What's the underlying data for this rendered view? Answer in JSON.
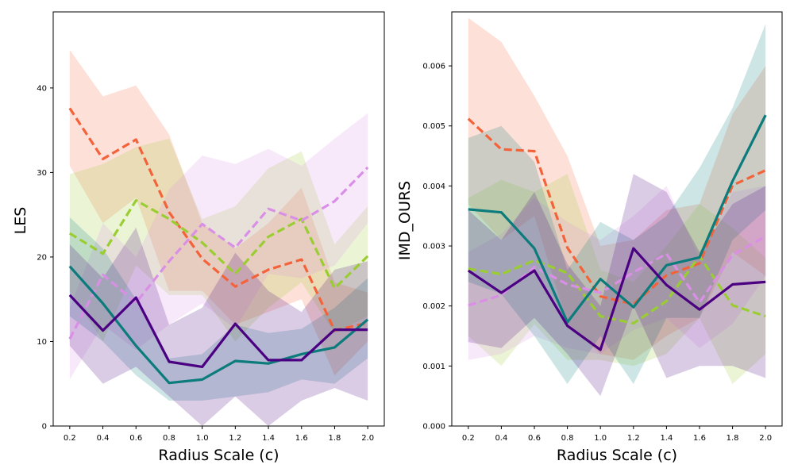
{
  "chart_data": [
    {
      "type": "line",
      "xlabel": "Radius Scale (c)",
      "ylabel": "LES",
      "x": [
        0.2,
        0.4,
        0.6,
        0.8,
        1.0,
        1.2,
        1.4,
        1.6,
        1.8,
        2.0
      ],
      "x_ticks": [
        "0.2",
        "0.4",
        "0.6",
        "0.8",
        "1.0",
        "1.2",
        "1.4",
        "1.6",
        "1.8",
        "2.0"
      ],
      "y_ticks": [
        "0",
        "10",
        "20",
        "30",
        "40"
      ],
      "ylim": [
        0,
        49
      ],
      "grid": false,
      "series": [
        {
          "color": "#F4623A",
          "dashed": true,
          "values": [
            37.6,
            31.6,
            33.9,
            25.3,
            19.8,
            16.5,
            18.5,
            19.7,
            11.3,
            12.2
          ],
          "lower": [
            30.8,
            24.0,
            27.0,
            16.0,
            16.0,
            12.0,
            13.5,
            15.0,
            6.0,
            10.0
          ],
          "upper": [
            44.5,
            39.0,
            40.3,
            34.5,
            24.0,
            21.0,
            24.0,
            28.2,
            17.0,
            15.8
          ]
        },
        {
          "color": "#9ACD32",
          "dashed": true,
          "values": [
            22.8,
            20.4,
            26.7,
            24.5,
            21.7,
            18.0,
            22.4,
            24.5,
            16.3,
            20.1
          ],
          "lower": [
            16.0,
            10.0,
            19.0,
            15.5,
            15.5,
            10.0,
            14.0,
            17.0,
            11.0,
            13.0
          ],
          "upper": [
            29.8,
            31.0,
            33.0,
            34.0,
            24.5,
            26.0,
            30.5,
            32.5,
            21.5,
            26.0
          ]
        },
        {
          "color": "#DA8FE6",
          "dashed": true,
          "values": [
            10.3,
            17.9,
            14.6,
            19.5,
            23.9,
            21.1,
            25.7,
            24.3,
            26.6,
            30.6
          ],
          "lower": [
            5.5,
            12.0,
            9.0,
            12.0,
            14.5,
            11.5,
            18.0,
            17.5,
            19.0,
            24.0
          ],
          "upper": [
            14.0,
            24.0,
            20.0,
            28.0,
            32.0,
            31.0,
            32.8,
            30.8,
            34.0,
            37.0
          ]
        },
        {
          "color": "#0B7B7B",
          "dashed": false,
          "values": [
            18.9,
            14.5,
            9.5,
            5.1,
            5.5,
            7.7,
            7.4,
            8.5,
            9.3,
            12.6
          ],
          "lower": [
            13.0,
            10.0,
            6.0,
            3.0,
            3.0,
            3.5,
            4.0,
            5.5,
            5.0,
            8.0
          ],
          "upper": [
            24.7,
            21.0,
            15.0,
            8.0,
            8.5,
            12.0,
            11.0,
            11.5,
            14.0,
            17.5
          ]
        },
        {
          "color": "#4B0082",
          "dashed": false,
          "values": [
            15.5,
            11.3,
            15.2,
            7.6,
            7.0,
            12.1,
            7.8,
            7.8,
            11.4,
            11.4
          ],
          "lower": [
            9.5,
            5.0,
            7.0,
            3.5,
            0.0,
            3.5,
            0.0,
            3.0,
            4.5,
            3.0
          ],
          "upper": [
            21.5,
            17.5,
            23.5,
            12.0,
            14.0,
            20.5,
            16.0,
            13.5,
            18.5,
            19.5
          ]
        }
      ]
    },
    {
      "type": "line",
      "xlabel": "Radius Scale (c)",
      "ylabel": "IMD_OURS",
      "x": [
        0.2,
        0.4,
        0.6,
        0.8,
        1.0,
        1.2,
        1.4,
        1.6,
        1.8,
        2.0
      ],
      "x_ticks": [
        "0.2",
        "0.4",
        "0.6",
        "0.8",
        "1.0",
        "1.2",
        "1.4",
        "1.6",
        "1.8",
        "2.0"
      ],
      "y_ticks": [
        "0.000",
        "0.001",
        "0.002",
        "0.003",
        "0.004",
        "0.005",
        "0.006"
      ],
      "ylim": [
        0,
        0.0069
      ],
      "grid": false,
      "series": [
        {
          "color": "#F4623A",
          "dashed": true,
          "values": [
            0.00512,
            0.00461,
            0.00458,
            0.00297,
            0.00216,
            0.00203,
            0.00251,
            0.00271,
            0.00401,
            0.00426
          ],
          "lower": [
            0.0037,
            0.0031,
            0.0035,
            0.0017,
            0.0012,
            0.0011,
            0.0015,
            0.0018,
            0.0029,
            0.0025
          ],
          "upper": [
            0.0068,
            0.0064,
            0.0055,
            0.0045,
            0.003,
            0.0031,
            0.0036,
            0.0037,
            0.0052,
            0.006
          ]
        },
        {
          "color": "#9ACD32",
          "dashed": true,
          "values": [
            0.00262,
            0.00253,
            0.00276,
            0.00255,
            0.00183,
            0.00171,
            0.00208,
            0.00283,
            0.00201,
            0.00183
          ],
          "lower": [
            0.0015,
            0.001,
            0.0017,
            0.0011,
            0.0011,
            0.001,
            0.0012,
            0.0018,
            0.0007,
            0.0012
          ],
          "upper": [
            0.0038,
            0.0041,
            0.0039,
            0.0042,
            0.0026,
            0.0024,
            0.003,
            0.0037,
            0.0033,
            0.0028
          ]
        },
        {
          "color": "#DA8FE6",
          "dashed": true,
          "values": [
            0.00201,
            0.00218,
            0.00265,
            0.00236,
            0.00222,
            0.00256,
            0.00287,
            0.00206,
            0.00285,
            0.00316
          ],
          "lower": [
            0.0011,
            0.0012,
            0.0015,
            0.0013,
            0.0012,
            0.0016,
            0.0018,
            0.0013,
            0.0017,
            0.0025
          ],
          "upper": [
            0.0029,
            0.0032,
            0.0038,
            0.0034,
            0.0031,
            0.0035,
            0.004,
            0.0028,
            0.0039,
            0.004
          ]
        },
        {
          "color": "#0B7B7B",
          "dashed": false,
          "values": [
            0.00361,
            0.00356,
            0.00296,
            0.00173,
            0.00245,
            0.00198,
            0.00268,
            0.00281,
            0.00408,
            0.00518
          ],
          "lower": [
            0.0024,
            0.0022,
            0.0015,
            0.0007,
            0.0015,
            0.0007,
            0.0018,
            0.0018,
            0.0031,
            0.0036
          ],
          "upper": [
            0.0048,
            0.005,
            0.0044,
            0.0026,
            0.0034,
            0.0031,
            0.0035,
            0.0043,
            0.0053,
            0.0067
          ]
        },
        {
          "color": "#4B0082",
          "dashed": false,
          "values": [
            0.00259,
            0.00222,
            0.00259,
            0.00167,
            0.00127,
            0.00296,
            0.00235,
            0.00194,
            0.00236,
            0.0024
          ],
          "lower": [
            0.0014,
            0.0013,
            0.0018,
            0.0012,
            0.0005,
            0.002,
            0.0008,
            0.001,
            0.001,
            0.0008
          ],
          "upper": [
            0.0036,
            0.0031,
            0.0039,
            0.0027,
            0.002,
            0.0042,
            0.0039,
            0.0029,
            0.0037,
            0.004
          ]
        }
      ]
    }
  ]
}
